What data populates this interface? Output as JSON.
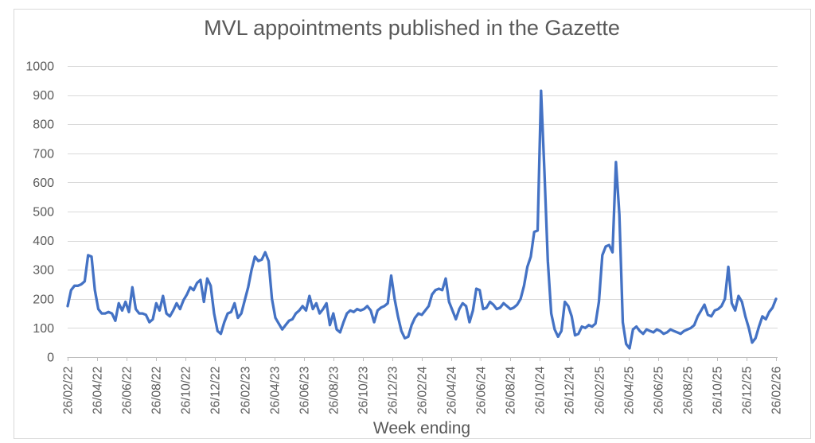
{
  "chart_data": {
    "type": "line",
    "title": "MVL appointments published in the Gazette",
    "xlabel": "Week ending",
    "ylabel": "",
    "x_start": "26/02/22",
    "x_end": "26/02/26",
    "x_interval": "weekly",
    "x_tick_labels": [
      "26/02/22",
      "26/04/22",
      "26/06/22",
      "26/08/22",
      "26/10/22",
      "26/12/22",
      "26/02/23",
      "26/04/23",
      "26/06/23",
      "26/08/23",
      "26/10/23",
      "26/12/23",
      "26/02/24",
      "26/04/24",
      "26/06/24",
      "26/08/24",
      "26/10/24",
      "26/12/24",
      "26/02/25",
      "26/04/25",
      "26/06/25",
      "26/08/25",
      "26/10/25",
      "26/12/25",
      "26/02/26"
    ],
    "y_ticks": [
      0,
      100,
      200,
      300,
      400,
      500,
      600,
      700,
      800,
      900,
      1000
    ],
    "ylim": [
      0,
      1000
    ],
    "grid": "horizontal",
    "legend": "none",
    "line_color": "#4472C4",
    "series": [
      {
        "name": "MVL appointments",
        "values": [
          175,
          230,
          245,
          245,
          250,
          260,
          350,
          345,
          230,
          165,
          150,
          150,
          155,
          150,
          125,
          185,
          160,
          190,
          155,
          240,
          165,
          150,
          150,
          145,
          120,
          130,
          185,
          160,
          210,
          150,
          140,
          160,
          185,
          165,
          195,
          215,
          240,
          230,
          255,
          265,
          190,
          270,
          245,
          150,
          90,
          80,
          120,
          150,
          155,
          185,
          135,
          150,
          195,
          240,
          300,
          345,
          330,
          335,
          360,
          330,
          200,
          135,
          115,
          95,
          110,
          125,
          130,
          150,
          160,
          175,
          160,
          210,
          165,
          185,
          150,
          165,
          185,
          110,
          150,
          95,
          85,
          120,
          150,
          160,
          155,
          165,
          160,
          165,
          175,
          160,
          120,
          160,
          170,
          175,
          185,
          280,
          200,
          140,
          90,
          65,
          70,
          110,
          135,
          150,
          145,
          160,
          175,
          215,
          230,
          235,
          230,
          270,
          190,
          160,
          130,
          165,
          185,
          175,
          120,
          160,
          235,
          230,
          165,
          170,
          190,
          180,
          165,
          170,
          185,
          175,
          165,
          170,
          180,
          200,
          245,
          310,
          345,
          430,
          435,
          915,
          640,
          330,
          150,
          95,
          70,
          90,
          190,
          175,
          140,
          75,
          80,
          105,
          100,
          110,
          105,
          115,
          190,
          350,
          380,
          385,
          360,
          670,
          490,
          120,
          45,
          30,
          95,
          105,
          90,
          80,
          95,
          90,
          85,
          95,
          90,
          80,
          85,
          95,
          90,
          85,
          80,
          90,
          95,
          100,
          110,
          140,
          160,
          180,
          145,
          140,
          160,
          165,
          175,
          200,
          310,
          185,
          160,
          210,
          190,
          140,
          100,
          50,
          65,
          105,
          140,
          130,
          155,
          170,
          200
        ]
      }
    ]
  },
  "colors": {
    "line": "#4472C4",
    "grid": "#D9D9D9",
    "axis": "#BFBFBF",
    "text": "#595959",
    "border": "#D9D9D9",
    "background": "#FFFFFF"
  }
}
